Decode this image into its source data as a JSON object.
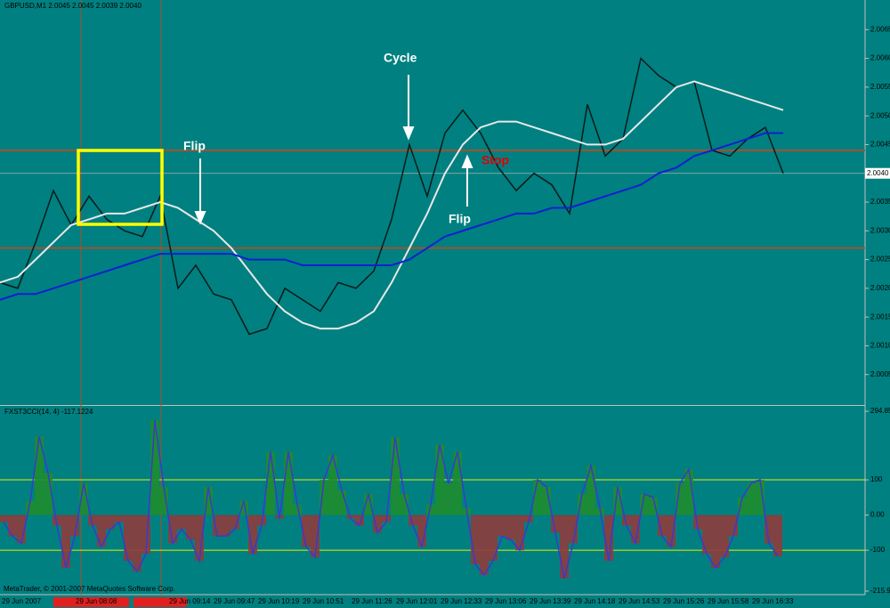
{
  "chart_data": [
    {
      "type": "line",
      "title": "GBPUSD,M1 2.0045 2.0045 2.0039 2.0040",
      "series": [
        {
          "color": "#0a1a1a",
          "values": [
            2.0021,
            2.002,
            2.0028,
            2.0037,
            2.0031,
            2.0036,
            2.0032,
            2.003,
            2.0029,
            2.0036,
            2.002,
            2.0024,
            2.0019,
            2.0018,
            2.0012,
            2.0013,
            2.002,
            2.0018,
            2.0016,
            2.0021,
            2.002,
            2.0023,
            2.0032,
            2.0045,
            2.0036,
            2.0047,
            2.0051,
            2.0047,
            2.0041,
            2.0037,
            2.004,
            2.0038,
            2.0033,
            2.0052,
            2.0043,
            2.0046,
            2.006,
            2.0057,
            2.0055,
            2.0056,
            2.0044,
            2.0043,
            2.0046,
            2.0048,
            2.004
          ]
        },
        {
          "color": "#e8e8e8",
          "values": [
            2.0021,
            2.0022,
            2.0025,
            2.0028,
            2.0031,
            2.0032,
            2.0033,
            2.0033,
            2.0034,
            2.0035,
            2.0034,
            2.0032,
            2.003,
            2.0027,
            2.0023,
            2.0019,
            2.0016,
            2.0014,
            2.0013,
            2.0013,
            2.0014,
            2.0016,
            2.0021,
            2.0027,
            2.0033,
            2.004,
            2.0045,
            2.0048,
            2.0049,
            2.0049,
            2.0048,
            2.0047,
            2.0046,
            2.0045,
            2.0045,
            2.0046,
            2.0049,
            2.0052,
            2.0055,
            2.0056,
            2.0055,
            2.0054,
            2.0053,
            2.0052,
            2.0051
          ]
        },
        {
          "color": "#1020d0",
          "values": [
            2.0018,
            2.0019,
            2.0019,
            2.002,
            2.0021,
            2.0022,
            2.0023,
            2.0024,
            2.0025,
            2.0026,
            2.0026,
            2.0026,
            2.0026,
            2.0026,
            2.0025,
            2.0025,
            2.0025,
            2.0024,
            2.0024,
            2.0024,
            2.0024,
            2.0024,
            2.0024,
            2.0025,
            2.0027,
            2.0029,
            2.003,
            2.0031,
            2.0032,
            2.0033,
            2.0033,
            2.0034,
            2.0034,
            2.0035,
            2.0036,
            2.0037,
            2.0038,
            2.004,
            2.0041,
            2.0043,
            2.0044,
            2.0045,
            2.0046,
            2.0047,
            2.0047
          ]
        }
      ],
      "ylim": [
        2.0,
        2.007
      ],
      "yticks": [
        2.0005,
        {
          "value": 2.001,
          "label": "2.0010"
        },
        2.0015,
        {
          "value": 2.002,
          "label": "2.0020"
        },
        2.0025,
        {
          "value": 2.003,
          "label": "2.0030"
        },
        2.0035,
        {
          "value": 2.004,
          "label": "2.0040"
        },
        2.0045,
        {
          "value": 2.005,
          "label": "2.0050"
        },
        2.0055,
        {
          "value": 2.006,
          "label": "2.0060"
        },
        2.0065
      ],
      "hlines": [
        2.0044,
        2.0027
      ],
      "hline_color": "#a0522d",
      "bid_line": {
        "value": 2.004,
        "label": "2.0040"
      },
      "annotations": [
        "Cycle",
        "Flip",
        "Flip",
        "Stop"
      ],
      "x_labels": [
        "29 Jun 2007",
        "29 Jun 08:08",
        "29 Jun 09:14",
        "29 Jun 09:47",
        "29 Jun 10:19",
        "29 Jun 10:51",
        "29 Jun 11:26",
        "29 Jun 12:01",
        "29 Jun 12:33",
        "29 Jun 13:06",
        "29 Jun 13:39",
        "29 Jun 14:18",
        "29 Jun 14:53",
        "29 Jun 15:26",
        "29 Jun 15:58",
        "29 Jun 16:33"
      ]
    },
    {
      "type": "bar",
      "title": "FXST3CCI(14, 4) -117.1224",
      "values": [
        -20,
        -60,
        -80,
        40,
        223,
        120,
        -30,
        -150,
        -60,
        90,
        -30,
        -90,
        -40,
        -20,
        -130,
        -160,
        -110,
        270,
        80,
        -80,
        -40,
        -70,
        -130,
        80,
        -60,
        -60,
        -40,
        40,
        -110,
        -30,
        180,
        -10,
        180,
        30,
        -90,
        -120,
        100,
        170,
        70,
        -10,
        -30,
        60,
        -50,
        -20,
        220,
        60,
        -30,
        -90,
        30,
        200,
        90,
        180,
        20,
        -140,
        -170,
        -130,
        -60,
        -70,
        -100,
        -20,
        100,
        80,
        -50,
        -180,
        -80,
        60,
        140,
        20,
        -130,
        80,
        -30,
        -80,
        60,
        50,
        -60,
        -90,
        90,
        130,
        -40,
        -110,
        -150,
        -120,
        -60,
        50,
        90,
        100,
        -80,
        -117
      ],
      "colors": {
        "up": "#1e8c2e",
        "down": "#8e3b3b",
        "line": "#3a3acc"
      },
      "ylim": [
        -215.993,
        294.858
      ],
      "yticks": [
        294.858,
        100,
        {
          "value": 0,
          "label": "0.00"
        },
        -100,
        -215.993
      ],
      "levels": [
        100,
        -100
      ],
      "level_color": "#e8f000"
    }
  ],
  "footer": "MetaTrader, © 2001-2007 MetaQuotes Software Corp."
}
